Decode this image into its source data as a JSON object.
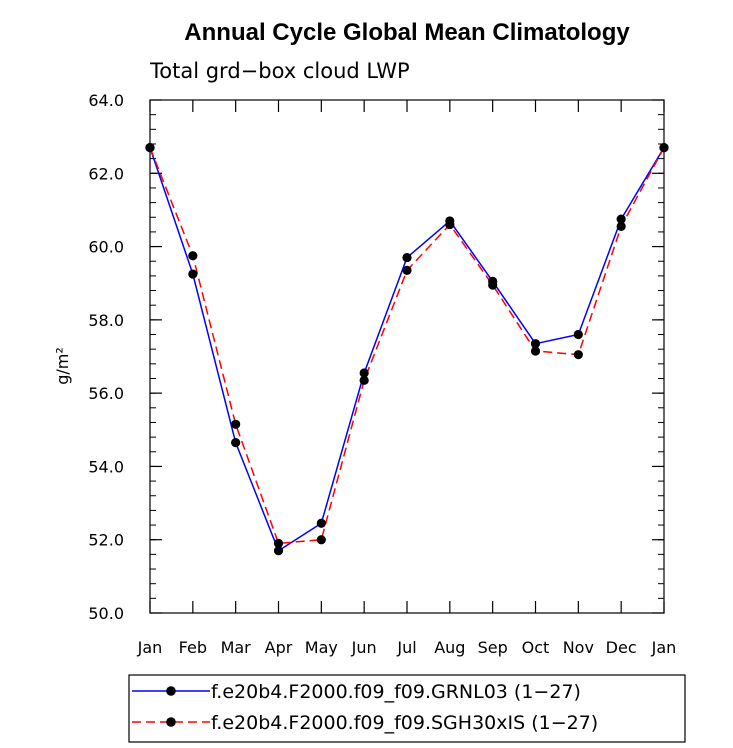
{
  "chart_data": {
    "type": "line",
    "title": "Annual Cycle Global Mean Climatology",
    "subtitle": "Total grd−box cloud LWP",
    "ylabel": "g/m²",
    "xlabel": "",
    "categories": [
      "Jan",
      "Feb",
      "Mar",
      "Apr",
      "May",
      "Jun",
      "Jul",
      "Aug",
      "Sep",
      "Oct",
      "Nov",
      "Dec",
      "Jan"
    ],
    "ylim": [
      50.0,
      64.0
    ],
    "yticks": [
      50.0,
      52.0,
      54.0,
      56.0,
      58.0,
      60.0,
      62.0,
      64.0
    ],
    "ytick_labels": [
      "50.0",
      "52.0",
      "54.0",
      "56.0",
      "58.0",
      "60.0",
      "62.0",
      "64.0"
    ],
    "grid": false,
    "legend_placement": "bottom",
    "series": [
      {
        "name": "f.e20b4.F2000.f09_f09.GRNL03 (1−27)",
        "color": "#0000ff",
        "dash": "solid",
        "values": [
          62.7,
          59.25,
          54.65,
          51.7,
          52.45,
          56.55,
          59.7,
          60.7,
          59.05,
          57.35,
          57.6,
          60.75,
          62.7
        ]
      },
      {
        "name": "f.e20b4.F2000.f09_f09.SGH30xIS (1−27)",
        "color": "#ff0000",
        "dash": "dashed",
        "values": [
          62.7,
          59.75,
          55.15,
          51.9,
          52.0,
          56.35,
          59.35,
          60.6,
          58.95,
          57.15,
          57.05,
          60.55,
          62.7
        ]
      }
    ]
  }
}
